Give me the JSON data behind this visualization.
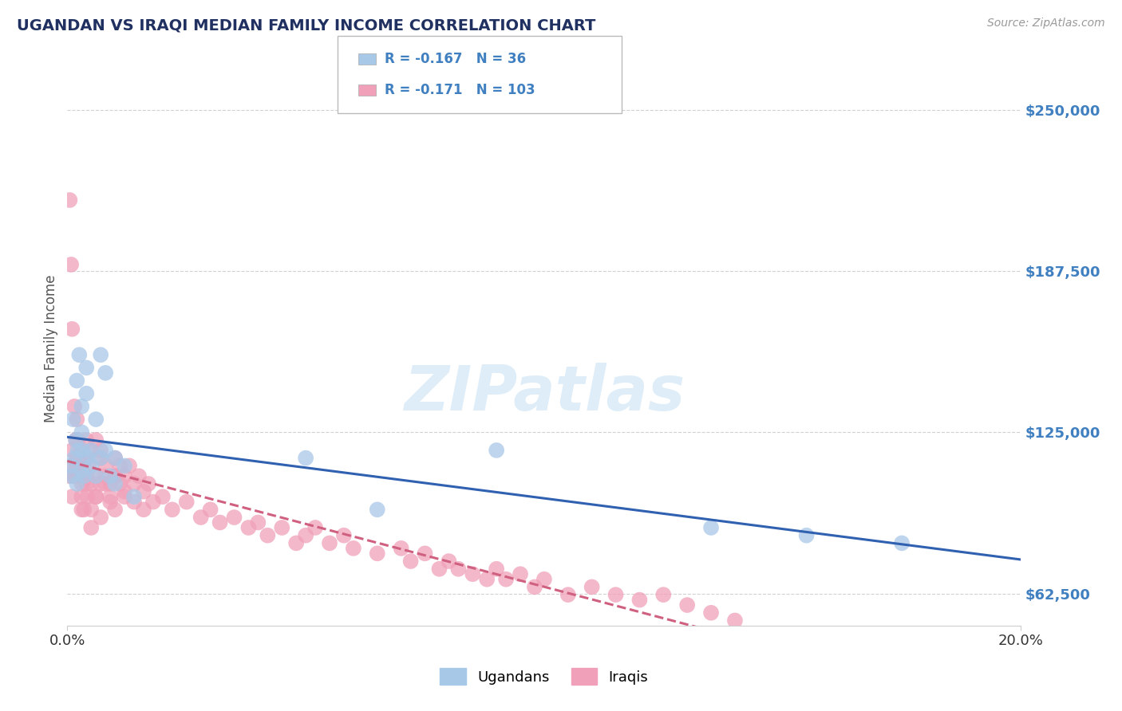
{
  "title": "UGANDAN VS IRAQI MEDIAN FAMILY INCOME CORRELATION CHART",
  "source": "Source: ZipAtlas.com",
  "ylabel": "Median Family Income",
  "xlim": [
    0.0,
    0.2
  ],
  "ylim": [
    50000,
    265000
  ],
  "yticks": [
    62500,
    125000,
    187500,
    250000
  ],
  "ytick_labels": [
    "$62,500",
    "$125,000",
    "$187,500",
    "$250,000"
  ],
  "xticks": [
    0.0,
    0.2
  ],
  "xtick_labels": [
    "0.0%",
    "20.0%"
  ],
  "legend_r1": "-0.167",
  "legend_n1": "36",
  "legend_r2": "-0.171",
  "legend_n2": "103",
  "color_ugandan": "#a8c8e8",
  "color_iraqi": "#f0a0b8",
  "line_color_ugandan": "#3060b0",
  "line_color_iraqi": "#d06080",
  "tick_color": "#4080c0",
  "title_color": "#203060",
  "source_color": "#999999",
  "grid_color": "#cccccc",
  "watermark": "ZIPatlas",
  "background_color": "#ffffff",
  "ugandan_x": [
    0.0008,
    0.001,
    0.0012,
    0.0015,
    0.0018,
    0.002,
    0.002,
    0.0022,
    0.0025,
    0.003,
    0.003,
    0.003,
    0.0032,
    0.0035,
    0.004,
    0.004,
    0.0042,
    0.005,
    0.005,
    0.006,
    0.006,
    0.007,
    0.007,
    0.008,
    0.008,
    0.009,
    0.01,
    0.01,
    0.012,
    0.014,
    0.05,
    0.065,
    0.09,
    0.135,
    0.155,
    0.175
  ],
  "ugandan_y": [
    112000,
    108000,
    130000,
    115000,
    122000,
    105000,
    145000,
    118000,
    155000,
    110000,
    125000,
    135000,
    118000,
    108000,
    150000,
    140000,
    115000,
    112000,
    118000,
    108000,
    130000,
    115000,
    155000,
    148000,
    118000,
    108000,
    115000,
    105000,
    112000,
    100000,
    115000,
    95000,
    118000,
    88000,
    85000,
    82000
  ],
  "iraqi_x": [
    0.0005,
    0.0008,
    0.001,
    0.001,
    0.0012,
    0.0015,
    0.0015,
    0.0018,
    0.002,
    0.002,
    0.002,
    0.0022,
    0.0025,
    0.003,
    0.003,
    0.003,
    0.003,
    0.0032,
    0.0035,
    0.004,
    0.004,
    0.004,
    0.0042,
    0.0045,
    0.005,
    0.005,
    0.005,
    0.006,
    0.006,
    0.006,
    0.007,
    0.007,
    0.007,
    0.008,
    0.008,
    0.009,
    0.009,
    0.01,
    0.01,
    0.011,
    0.011,
    0.012,
    0.012,
    0.013,
    0.014,
    0.014,
    0.015,
    0.016,
    0.016,
    0.017,
    0.018,
    0.02,
    0.022,
    0.025,
    0.028,
    0.03,
    0.032,
    0.035,
    0.038,
    0.04,
    0.042,
    0.045,
    0.048,
    0.05,
    0.052,
    0.055,
    0.058,
    0.06,
    0.065,
    0.07,
    0.072,
    0.075,
    0.078,
    0.08,
    0.082,
    0.085,
    0.088,
    0.09,
    0.092,
    0.095,
    0.098,
    0.1,
    0.105,
    0.11,
    0.115,
    0.12,
    0.125,
    0.13,
    0.135,
    0.14,
    0.0005,
    0.001,
    0.002,
    0.003,
    0.004,
    0.005,
    0.006,
    0.007,
    0.008,
    0.009,
    0.01,
    0.01,
    0.012
  ],
  "iraqi_y": [
    215000,
    190000,
    118000,
    165000,
    112000,
    135000,
    108000,
    122000,
    115000,
    108000,
    130000,
    122000,
    115000,
    112000,
    105000,
    118000,
    100000,
    108000,
    95000,
    122000,
    108000,
    115000,
    100000,
    112000,
    118000,
    105000,
    95000,
    122000,
    108000,
    100000,
    115000,
    105000,
    118000,
    108000,
    112000,
    105000,
    100000,
    115000,
    108000,
    112000,
    105000,
    108000,
    100000,
    112000,
    105000,
    98000,
    108000,
    102000,
    95000,
    105000,
    98000,
    100000,
    95000,
    98000,
    92000,
    95000,
    90000,
    92000,
    88000,
    90000,
    85000,
    88000,
    82000,
    85000,
    88000,
    82000,
    85000,
    80000,
    78000,
    80000,
    75000,
    78000,
    72000,
    75000,
    72000,
    70000,
    68000,
    72000,
    68000,
    70000,
    65000,
    68000,
    62000,
    65000,
    62000,
    60000,
    62000,
    58000,
    55000,
    52000,
    108000,
    100000,
    112000,
    95000,
    105000,
    88000,
    100000,
    92000,
    105000,
    98000,
    108000,
    95000,
    102000
  ]
}
